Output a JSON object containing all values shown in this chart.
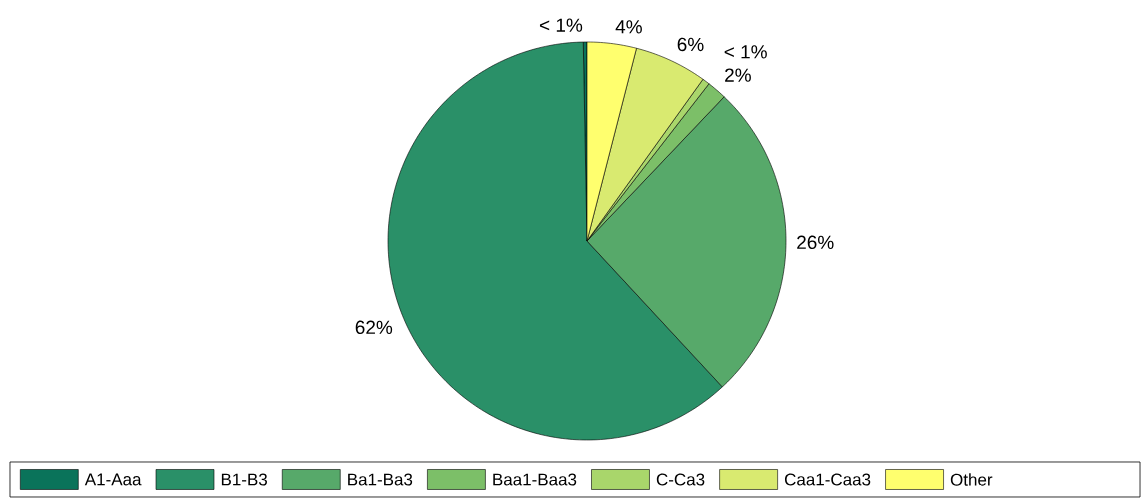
{
  "chart_data": {
    "type": "pie",
    "categories": [
      "A1-Aaa",
      "B1-B3",
      "Ba1-Ba3",
      "Baa1-Baa3",
      "C-Ca3",
      "Caa1-Caa3",
      "Other"
    ],
    "values": [
      0.3,
      61.6,
      26,
      1.6,
      0.6,
      5.9,
      4
    ],
    "colors": [
      "#0a735a",
      "#2a9068",
      "#57a96a",
      "#7cbf68",
      "#a9d66b",
      "#d9ea70",
      "#ffff6e"
    ],
    "value_labels": [
      "< 1%",
      "62%",
      "26%",
      "2%",
      "< 1%",
      "6%",
      "4%"
    ],
    "legend": "bottom"
  }
}
